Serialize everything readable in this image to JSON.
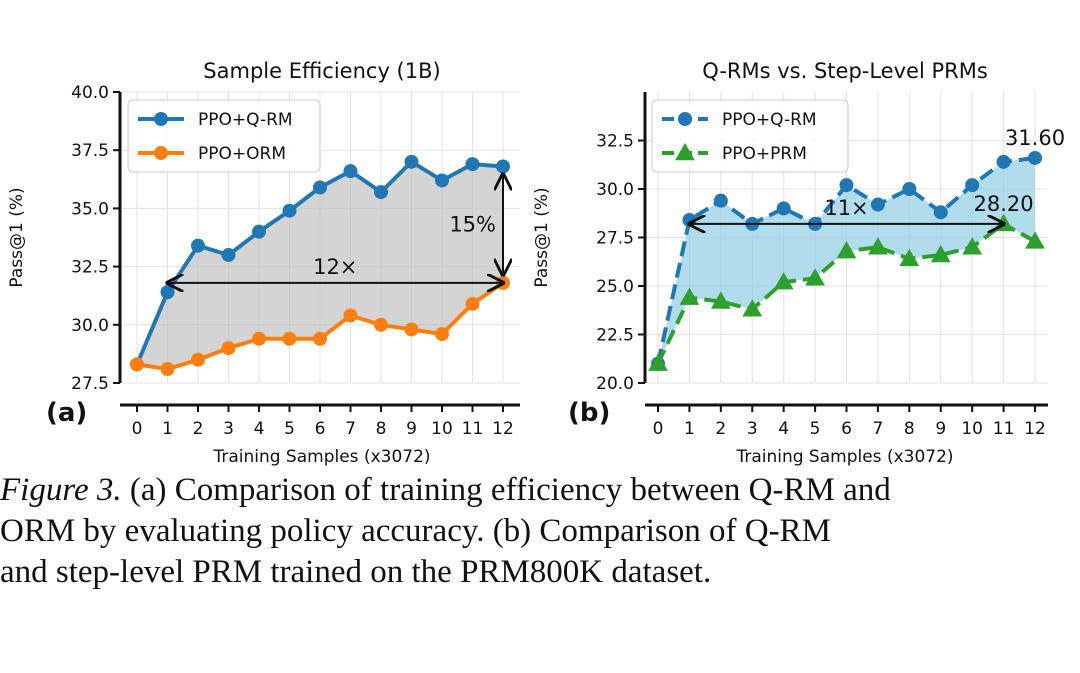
{
  "chart_data": [
    {
      "panel_label": "(a)",
      "type": "line",
      "title": "Sample Efficiency (1B)",
      "xlabel": "Training Samples (x3072)",
      "ylabel": "Pass@1 (%)",
      "x": [
        0,
        1,
        2,
        3,
        4,
        5,
        6,
        7,
        8,
        9,
        10,
        11,
        12
      ],
      "xticks": [
        "0",
        "1",
        "2",
        "3",
        "4",
        "5",
        "6",
        "7",
        "8",
        "9",
        "10",
        "11",
        "12"
      ],
      "ylim": [
        27.5,
        40.0
      ],
      "yticks": [
        "27.5",
        "30.0",
        "32.5",
        "35.0",
        "37.5",
        "40.0"
      ],
      "ytick_values": [
        27.5,
        30.0,
        32.5,
        35.0,
        37.5,
        40.0
      ],
      "grid": true,
      "legend_placement": "top-left",
      "fill_between": "gray",
      "series": [
        {
          "name": "PPO+Q-RM",
          "color": "#1f77b4",
          "marker": "circle",
          "linestyle": "solid",
          "values": [
            28.3,
            31.4,
            33.4,
            33.0,
            34.0,
            34.9,
            35.9,
            36.6,
            35.7,
            37.0,
            36.2,
            36.9,
            36.8
          ]
        },
        {
          "name": "PPO+ORM",
          "color": "#ff7f0e",
          "marker": "circle",
          "linestyle": "solid",
          "values": [
            28.3,
            28.1,
            28.5,
            29.0,
            29.4,
            29.4,
            29.4,
            30.4,
            30.0,
            29.8,
            29.6,
            30.9,
            31.8
          ]
        }
      ],
      "annotations": [
        {
          "text": "12×",
          "type": "double-arrow-horizontal",
          "x_from": 1,
          "x_to": 12,
          "y": 31.8
        },
        {
          "text": "15%",
          "type": "double-arrow-vertical",
          "x": 12,
          "y_from": 31.8,
          "y_to": 36.8
        }
      ]
    },
    {
      "panel_label": "(b)",
      "type": "line",
      "title": "Q-RMs vs. Step-Level PRMs",
      "xlabel": "Training Samples (x3072)",
      "ylabel": "Pass@1 (%)",
      "x": [
        0,
        1,
        2,
        3,
        4,
        5,
        6,
        7,
        8,
        9,
        10,
        11,
        12
      ],
      "xticks": [
        "0",
        "1",
        "2",
        "3",
        "4",
        "5",
        "6",
        "7",
        "8",
        "9",
        "10",
        "11",
        "12"
      ],
      "ylim": [
        20.0,
        35.0
      ],
      "yticks": [
        "20.0",
        "22.5",
        "25.0",
        "27.5",
        "30.0",
        "32.5"
      ],
      "ytick_values": [
        20.0,
        22.5,
        25.0,
        27.5,
        30.0,
        32.5
      ],
      "grid": true,
      "legend_placement": "top-left",
      "fill_between": "lightblue",
      "series": [
        {
          "name": "PPO+Q-RM",
          "color": "#1f77b4",
          "marker": "circle",
          "linestyle": "dashed",
          "values": [
            21.0,
            28.4,
            29.4,
            28.2,
            29.0,
            28.2,
            30.2,
            29.2,
            30.0,
            28.8,
            30.2,
            31.4,
            31.6
          ]
        },
        {
          "name": "PPO+PRM",
          "color": "#2ca02c",
          "marker": "triangle",
          "linestyle": "dashed",
          "values": [
            21.0,
            24.4,
            24.2,
            23.8,
            25.2,
            25.4,
            26.8,
            27.0,
            26.4,
            26.6,
            27.0,
            28.2,
            27.3
          ]
        }
      ],
      "annotations": [
        {
          "text": "11×",
          "type": "double-arrow-horizontal",
          "x_from": 1,
          "x_to": 11,
          "y": 28.2
        },
        {
          "text": "31.60",
          "type": "data-label",
          "x": 12,
          "y": 31.6
        },
        {
          "text": "28.20",
          "type": "data-label",
          "x": 11,
          "y": 28.2
        }
      ]
    }
  ],
  "caption": {
    "figure_label": "Figure 3.",
    "lines": [
      " (a) Comparison of training efficiency between Q-RM and",
      "ORM by evaluating policy accuracy.  (b) Comparison of Q-RM",
      "and step-level PRM trained on the PRM800K dataset."
    ]
  }
}
